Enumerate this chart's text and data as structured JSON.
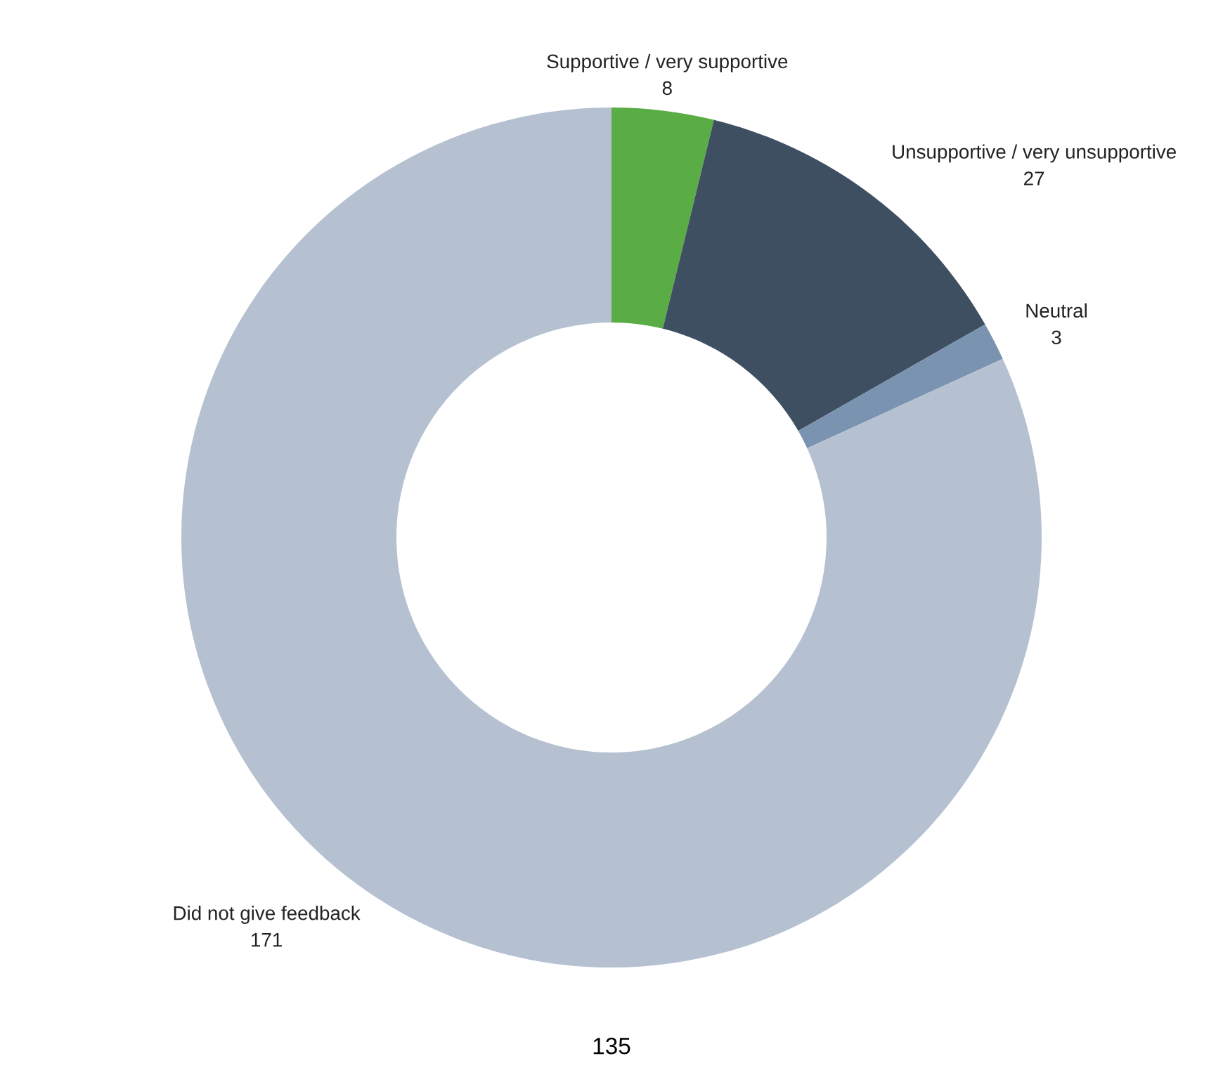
{
  "chart_data": {
    "type": "donut",
    "categories": [
      "Supportive / very supportive",
      "Unsupportive / very unsupportive",
      "Neutral",
      "Did not give feedback"
    ],
    "values": [
      8,
      27,
      3,
      171
    ],
    "colors": [
      "#5aac44",
      "#3e4f62",
      "#7a93b0",
      "#b5c1d0"
    ],
    "data_labels": true,
    "annotations": [
      "135"
    ]
  }
}
